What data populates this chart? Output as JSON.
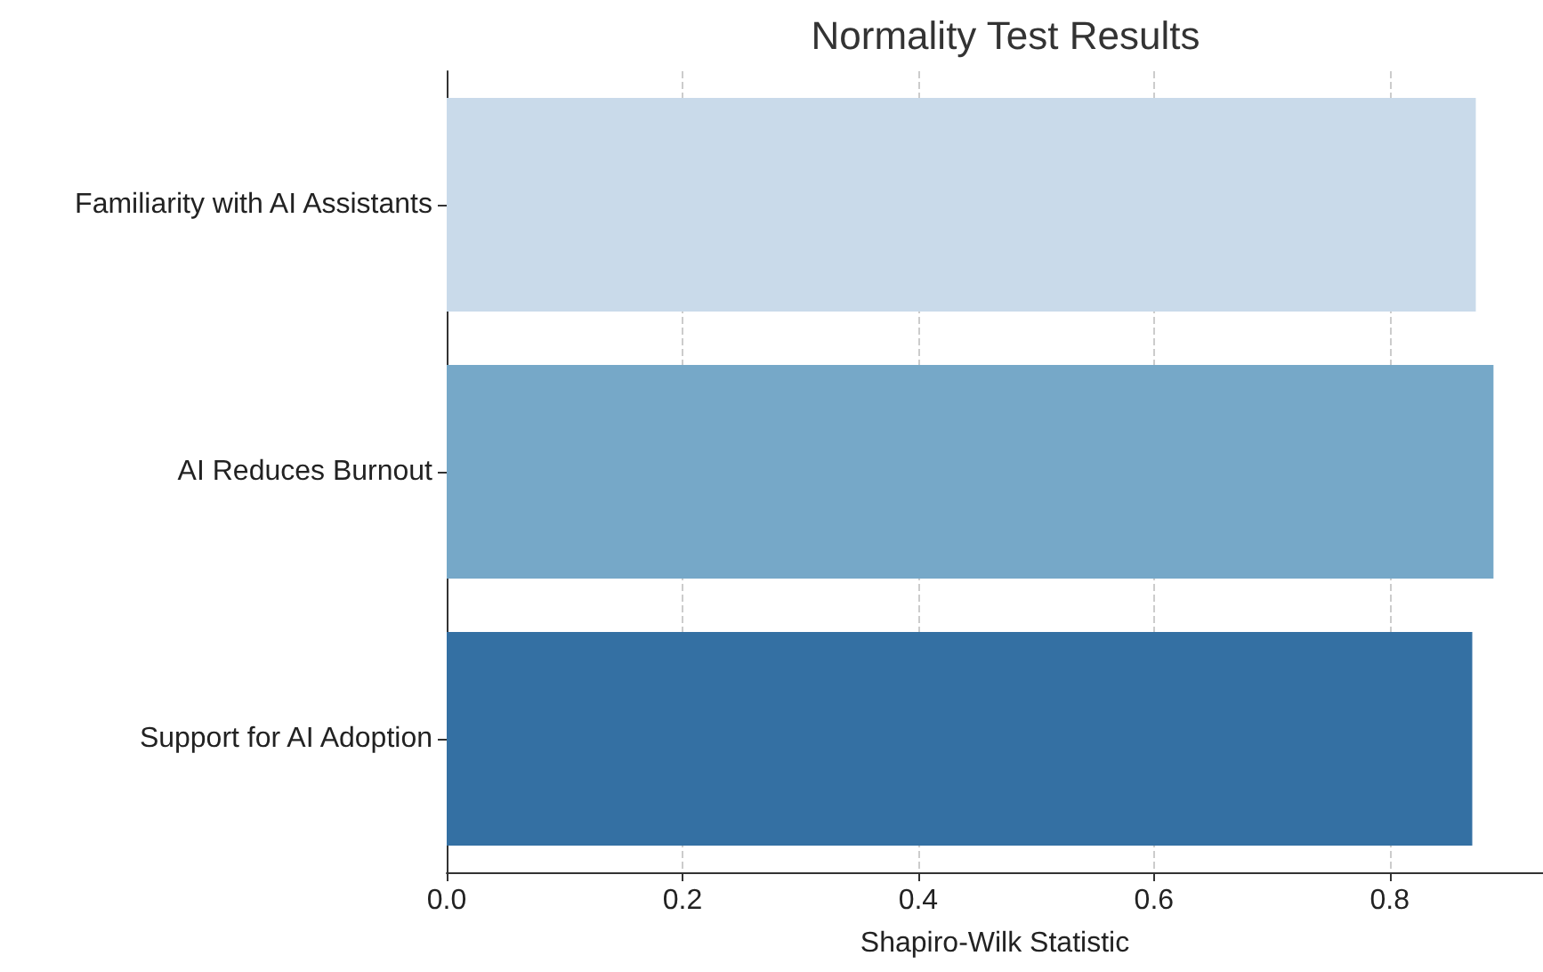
{
  "chart_data": {
    "type": "bar",
    "orientation": "horizontal",
    "title": "Normality Test Results",
    "xlabel": "Shapiro-Wilk Statistic",
    "categories": [
      "Familiarity with AI Assistants",
      "AI Reduces Burnout",
      "Support for AI Adoption"
    ],
    "values": [
      0.873,
      0.888,
      0.87
    ],
    "colors": [
      "#c9daea",
      "#76a8c8",
      "#3470a3"
    ],
    "xlim": [
      0,
      0.93
    ],
    "xticks": [
      {
        "value": 0,
        "label": "0.0"
      },
      {
        "value": 0.2,
        "label": "0.2"
      },
      {
        "value": 0.4,
        "label": "0.4"
      },
      {
        "value": 0.6,
        "label": "0.6"
      },
      {
        "value": 0.8,
        "label": "0.8"
      }
    ],
    "grid": "x"
  }
}
